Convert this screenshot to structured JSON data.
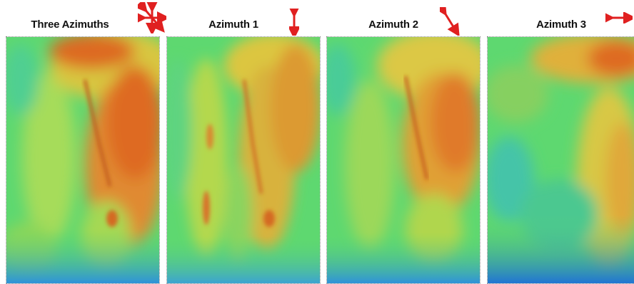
{
  "panels": [
    {
      "title": "Three Azimuths",
      "arrow_icon": "four-way-arrow-icon"
    },
    {
      "title": "Azimuth 1",
      "arrow_icon": "vertical-arrow-icon"
    },
    {
      "title": "Azimuth 2",
      "arrow_icon": "diagonal-arrow-icon"
    },
    {
      "title": "Azimuth 3",
      "arrow_icon": "horizontal-arrow-icon"
    }
  ],
  "colors": {
    "arrow": "#e02020",
    "background_green": "#5ed870",
    "warm_yellow": "#e2d24a",
    "hot_orange": "#e2641e",
    "cold_blue": "#2c8ee0"
  }
}
